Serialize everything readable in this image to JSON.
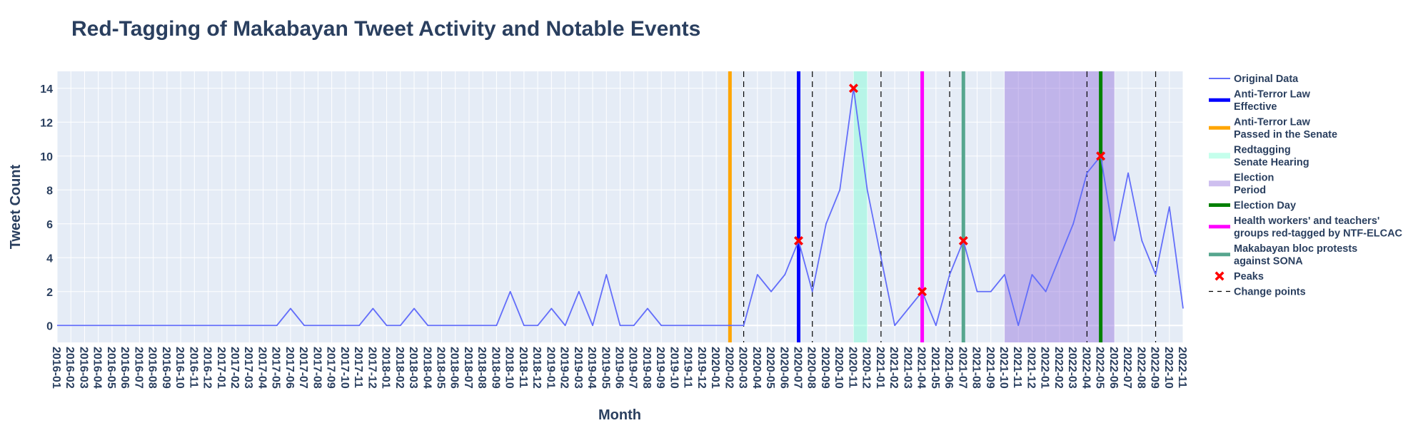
{
  "chart_data": {
    "type": "line",
    "title": "Red-Tagging of Makabayan Tweet Activity and Notable Events",
    "xlabel": "Month",
    "ylabel": "Tweet Count",
    "ylim": [
      -1,
      15
    ],
    "y_ticks": [
      0,
      2,
      4,
      6,
      8,
      10,
      12,
      14
    ],
    "grid": true,
    "legend_position": "right",
    "x": [
      "2016-01",
      "2016-02",
      "2016-03",
      "2016-04",
      "2016-05",
      "2016-06",
      "2016-07",
      "2016-08",
      "2016-09",
      "2016-10",
      "2016-11",
      "2016-12",
      "2017-01",
      "2017-02",
      "2017-03",
      "2017-04",
      "2017-05",
      "2017-06",
      "2017-07",
      "2017-08",
      "2017-09",
      "2017-10",
      "2017-11",
      "2017-12",
      "2018-01",
      "2018-02",
      "2018-03",
      "2018-04",
      "2018-05",
      "2018-06",
      "2018-07",
      "2018-08",
      "2018-09",
      "2018-10",
      "2018-11",
      "2018-12",
      "2019-01",
      "2019-02",
      "2019-03",
      "2019-04",
      "2019-05",
      "2019-06",
      "2019-07",
      "2019-08",
      "2019-09",
      "2019-10",
      "2019-11",
      "2019-12",
      "2020-01",
      "2020-02",
      "2020-03",
      "2020-04",
      "2020-05",
      "2020-06",
      "2020-07",
      "2020-08",
      "2020-09",
      "2020-10",
      "2020-11",
      "2020-12",
      "2021-01",
      "2021-02",
      "2021-03",
      "2021-04",
      "2021-05",
      "2021-06",
      "2021-07",
      "2021-08",
      "2021-09",
      "2021-10",
      "2021-11",
      "2021-12",
      "2022-01",
      "2022-02",
      "2022-03",
      "2022-04",
      "2022-05",
      "2022-06",
      "2022-07",
      "2022-08",
      "2022-09",
      "2022-10",
      "2022-11"
    ],
    "series": [
      {
        "name": "Original Data",
        "color": "#636efa",
        "values": [
          0,
          0,
          0,
          0,
          0,
          0,
          0,
          0,
          0,
          0,
          0,
          0,
          0,
          0,
          0,
          0,
          0,
          1,
          0,
          0,
          0,
          0,
          0,
          1,
          0,
          0,
          1,
          0,
          0,
          0,
          0,
          0,
          0,
          2,
          0,
          0,
          1,
          0,
          2,
          0,
          3,
          0,
          0,
          1,
          0,
          0,
          0,
          0,
          0,
          0,
          0,
          3,
          2,
          3,
          5,
          2,
          6,
          8,
          14,
          8,
          4,
          0,
          1,
          2,
          0,
          3,
          5,
          2,
          2,
          3,
          0,
          3,
          2,
          4,
          6,
          9,
          10,
          5,
          9,
          5,
          3,
          7,
          1
        ]
      }
    ],
    "peaks": {
      "name": "Peaks",
      "color": "#ff0000",
      "points": [
        {
          "x": "2020-07",
          "y": 5
        },
        {
          "x": "2020-11",
          "y": 14
        },
        {
          "x": "2021-04",
          "y": 2
        },
        {
          "x": "2021-07",
          "y": 5
        },
        {
          "x": "2022-05",
          "y": 10
        }
      ]
    },
    "change_points": {
      "name": "Change points",
      "color": "#000000",
      "x": [
        "2020-03",
        "2020-08",
        "2021-01",
        "2021-06",
        "2022-04",
        "2022-09"
      ]
    },
    "event_lines": [
      {
        "name": "Anti-Terror Law Effective",
        "label_lines": [
          "Anti-Terror Law",
          "Effective"
        ],
        "x": "2020-07",
        "color": "#0000ff"
      },
      {
        "name": "Anti-Terror Law Passed in the Senate",
        "label_lines": [
          "Anti-Terror Law",
          "Passed in the Senate"
        ],
        "x": "2020-02",
        "color": "#ffa500"
      },
      {
        "name": "Election Day",
        "label_lines": [
          "Election Day"
        ],
        "x": "2022-05",
        "color": "#008000"
      },
      {
        "name": "Health workers' and teachers' groups red-tagged by NTF-ELCAC",
        "label_lines": [
          "Health workers' and teachers'",
          "groups red-tagged by NTF-ELCAC"
        ],
        "x": "2021-04",
        "color": "#ff00ff"
      },
      {
        "name": "Makabayan bloc protests against SONA",
        "label_lines": [
          "Makabayan bloc protests",
          "against SONA"
        ],
        "x": "2021-07",
        "color": "#56a68e"
      }
    ],
    "event_spans": [
      {
        "name": "Redtagging Senate Hearing",
        "label_lines": [
          "Redtagging",
          "Senate Hearing"
        ],
        "x0": "2020-11",
        "x1": "2020-12",
        "color": "#7fffd4"
      },
      {
        "name": "Election Period",
        "label_lines": [
          "Election",
          "Period"
        ],
        "x0": "2021-10",
        "x1": "2022-06",
        "color": "#9370db"
      }
    ]
  },
  "legend": [
    {
      "kind": "line",
      "label_lines": [
        "Original Data"
      ],
      "color": "#636efa"
    },
    {
      "kind": "thick",
      "label_lines": [
        "Anti-Terror Law",
        "Effective"
      ],
      "color": "#0000ff"
    },
    {
      "kind": "thick",
      "label_lines": [
        "Anti-Terror Law",
        "Passed in the Senate"
      ],
      "color": "#ffa500"
    },
    {
      "kind": "rect",
      "label_lines": [
        "Redtagging",
        "Senate Hearing"
      ],
      "color": "#7fffd4"
    },
    {
      "kind": "rect",
      "label_lines": [
        "Election",
        "Period"
      ],
      "color": "#9370db"
    },
    {
      "kind": "thick",
      "label_lines": [
        "Election Day"
      ],
      "color": "#008000"
    },
    {
      "kind": "thick",
      "label_lines": [
        "Health workers' and teachers'",
        "groups red-tagged by NTF-ELCAC"
      ],
      "color": "#ff00ff"
    },
    {
      "kind": "thick",
      "label_lines": [
        "Makabayan bloc protests",
        "against SONA"
      ],
      "color": "#56a68e"
    },
    {
      "kind": "marker",
      "label_lines": [
        "Peaks"
      ],
      "color": "#ff0000"
    },
    {
      "kind": "dash",
      "label_lines": [
        "Change points"
      ],
      "color": "#000000"
    }
  ]
}
